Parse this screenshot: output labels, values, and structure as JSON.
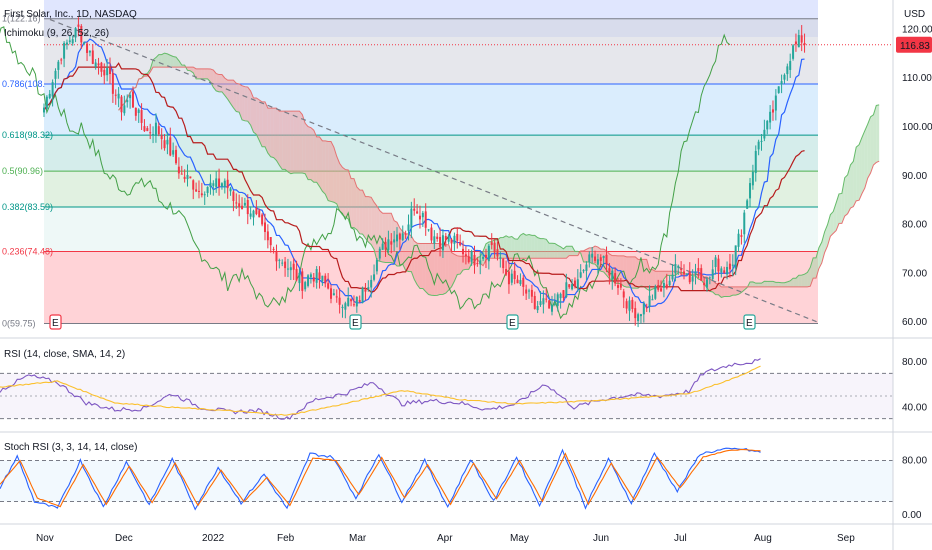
{
  "header": {
    "symbol": "First Solar, Inc., 1D, NASDAQ",
    "indicator": "Ichimoku (9, 26, 52, 26)",
    "currency": "USD"
  },
  "rsi_panel": {
    "label": "RSI (14, close, SMA, 14, 2)",
    "ticks": [
      "80.00",
      "40.00"
    ]
  },
  "stoch_panel": {
    "label": "Stoch RSI (3, 3, 14, 14, close)",
    "ticks": [
      "80.00",
      "0.00"
    ]
  },
  "price_badge": {
    "value": "116.83",
    "color": "#f23645"
  },
  "colors": {
    "up": "#26a69a",
    "down": "#f23645",
    "tenkan": "#2962ff",
    "kijun": "#b71c1c",
    "lagging": "#43a047",
    "cloud_bull": "#a5d6a7",
    "cloud_bear": "#ef9a9a",
    "rsi": "#7e57c2",
    "rsi_ma": "#fbc02d",
    "stoch_k": "#2962ff",
    "stoch_d": "#ff6d00"
  },
  "chart_data": [
    {
      "type": "candlestick",
      "title": "First Solar, Inc., 1D, NASDAQ",
      "y_axis": {
        "ticks": [
          "120.00",
          "110.00",
          "100.00",
          "90.00",
          "80.00",
          "70.00",
          "60.00"
        ],
        "range": [
          58,
          126
        ]
      },
      "x_axis": {
        "ticks": [
          "Nov",
          "Dec",
          "2022",
          "Feb",
          "Mar",
          "Apr",
          "May",
          "Jun",
          "Jul",
          "Aug",
          "Sep"
        ]
      },
      "fib_levels": [
        {
          "label": "1(122.16)",
          "value": 122.16,
          "fill": "#d1d4dc"
        },
        {
          "label": "0.786(108.",
          "value": 108.8,
          "fill": "#bbdefb"
        },
        {
          "label": "0.618(98.32)",
          "value": 98.32,
          "fill": "#b2dfdb"
        },
        {
          "label": "0.5(90.96)",
          "value": 90.96,
          "fill": "#c8e6c9"
        },
        {
          "label": "0.382(83.59)",
          "value": 83.59,
          "fill": "#e0f2f1"
        },
        {
          "label": "0.236(74.48)",
          "value": 74.48,
          "fill": "#ffcdd2"
        },
        {
          "label": "0(59.75)",
          "value": 59.75,
          "fill": ""
        }
      ],
      "earnings_markers": [
        {
          "label": "E",
          "month": "Oct",
          "kind": "negative"
        },
        {
          "label": "E",
          "month": "Mar",
          "kind": "positive"
        },
        {
          "label": "E",
          "month": "May",
          "kind": "positive"
        },
        {
          "label": "E",
          "month": "Aug",
          "kind": "positive"
        }
      ],
      "series": [
        {
          "name": "Close",
          "anchors": [
            [
              0,
              104
            ],
            [
              3,
              110
            ],
            [
              6,
              115
            ],
            [
              9,
              118
            ],
            [
              12,
              120
            ],
            [
              15,
              116
            ],
            [
              18,
              113
            ],
            [
              21,
              112
            ],
            [
              24,
              108
            ],
            [
              27,
              104
            ],
            [
              30,
              106
            ],
            [
              33,
              102
            ],
            [
              36,
              99
            ],
            [
              39,
              100
            ],
            [
              42,
              97
            ],
            [
              45,
              94
            ],
            [
              48,
              90
            ],
            [
              51,
              89
            ],
            [
              54,
              87
            ],
            [
              57,
              88
            ],
            [
              60,
              88
            ],
            [
              63,
              89
            ],
            [
              66,
              85
            ],
            [
              69,
              84
            ],
            [
              72,
              83
            ],
            [
              75,
              80
            ],
            [
              78,
              76
            ],
            [
              81,
              74
            ],
            [
              84,
              72
            ],
            [
              87,
              70
            ],
            [
              90,
              68
            ],
            [
              93,
              70
            ],
            [
              96,
              69
            ],
            [
              99,
              67
            ],
            [
              102,
              64
            ],
            [
              105,
              65
            ],
            [
              108,
              63
            ],
            [
              111,
              66
            ],
            [
              114,
              70
            ],
            [
              117,
              74
            ],
            [
              120,
              77
            ],
            [
              123,
              78
            ],
            [
              126,
              79
            ],
            [
              129,
              84
            ],
            [
              132,
              82
            ],
            [
              135,
              78
            ],
            [
              138,
              77
            ],
            [
              141,
              77
            ],
            [
              144,
              76
            ],
            [
              147,
              74
            ],
            [
              150,
              73
            ],
            [
              153,
              74
            ],
            [
              156,
              76
            ],
            [
              159,
              72
            ],
            [
              162,
              69
            ],
            [
              165,
              68
            ],
            [
              168,
              66
            ],
            [
              171,
              63
            ],
            [
              174,
              64
            ],
            [
              177,
              62
            ],
            [
              180,
              66
            ],
            [
              183,
              67
            ],
            [
              186,
              68
            ],
            [
              189,
              72
            ],
            [
              192,
              74
            ],
            [
              195,
              72
            ],
            [
              198,
              70
            ],
            [
              201,
              67
            ],
            [
              204,
              63
            ],
            [
              207,
              62
            ],
            [
              210,
              64
            ],
            [
              213,
              66
            ],
            [
              216,
              67
            ],
            [
              219,
              70
            ],
            [
              222,
              72
            ],
            [
              225,
              69
            ],
            [
              228,
              71
            ],
            [
              231,
              68
            ],
            [
              234,
              72
            ],
            [
              237,
              71
            ],
            [
              240,
              73
            ],
            [
              243,
              79
            ],
            [
              246,
              89
            ],
            [
              249,
              97
            ],
            [
              252,
              100
            ],
            [
              255,
              105
            ],
            [
              258,
              112
            ],
            [
              261,
              116
            ],
            [
              264,
              118
            ],
            [
              265,
              116.83
            ]
          ]
        }
      ],
      "current_price": 116.83
    },
    {
      "type": "line",
      "title": "RSI (14, close, SMA, 14, 2)",
      "y_axis": {
        "ticks": [
          "80.00",
          "40.00"
        ]
      },
      "series": [
        {
          "name": "RSI",
          "anchors": [
            [
              0,
              55
            ],
            [
              10,
              68
            ],
            [
              20,
              62
            ],
            [
              30,
              44
            ],
            [
              40,
              38
            ],
            [
              50,
              39
            ],
            [
              60,
              52
            ],
            [
              70,
              40
            ],
            [
              80,
              36
            ],
            [
              90,
              37
            ],
            [
              100,
              30
            ],
            [
              110,
              47
            ],
            [
              120,
              52
            ],
            [
              130,
              62
            ],
            [
              140,
              43
            ],
            [
              150,
              46
            ],
            [
              160,
              44
            ],
            [
              170,
              38
            ],
            [
              180,
              43
            ],
            [
              190,
              61
            ],
            [
              200,
              40
            ],
            [
              210,
              47
            ],
            [
              220,
              51
            ],
            [
              230,
              50
            ],
            [
              240,
              54
            ],
            [
              245,
              70
            ],
            [
              255,
              78
            ],
            [
              265,
              81
            ]
          ]
        },
        {
          "name": "SMA",
          "anchors": [
            [
              0,
              58
            ],
            [
              20,
              63
            ],
            [
              40,
              44
            ],
            [
              60,
              40
            ],
            [
              80,
              37
            ],
            [
              100,
              33
            ],
            [
              120,
              43
            ],
            [
              140,
              55
            ],
            [
              160,
              47
            ],
            [
              180,
              43
            ],
            [
              200,
              45
            ],
            [
              220,
              48
            ],
            [
              240,
              52
            ],
            [
              255,
              65
            ],
            [
              265,
              76
            ]
          ]
        }
      ]
    },
    {
      "type": "line",
      "title": "Stoch RSI (3, 3, 14, 14, close)",
      "y_axis": {
        "ticks": [
          "80.00",
          "0.00"
        ]
      },
      "series": [
        {
          "name": "K",
          "anchors": [
            [
              0,
              40
            ],
            [
              6,
              86
            ],
            [
              12,
              20
            ],
            [
              20,
              10
            ],
            [
              28,
              80
            ],
            [
              36,
              12
            ],
            [
              44,
              78
            ],
            [
              52,
              15
            ],
            [
              60,
              82
            ],
            [
              68,
              10
            ],
            [
              76,
              70
            ],
            [
              84,
              18
            ],
            [
              92,
              60
            ],
            [
              100,
              10
            ],
            [
              108,
              90
            ],
            [
              116,
              85
            ],
            [
              124,
              25
            ],
            [
              132,
              90
            ],
            [
              140,
              20
            ],
            [
              148,
              80
            ],
            [
              156,
              12
            ],
            [
              164,
              82
            ],
            [
              172,
              20
            ],
            [
              180,
              85
            ],
            [
              188,
              15
            ],
            [
              196,
              95
            ],
            [
              204,
              12
            ],
            [
              212,
              82
            ],
            [
              220,
              18
            ],
            [
              228,
              90
            ],
            [
              236,
              35
            ],
            [
              244,
              90
            ],
            [
              252,
              96
            ],
            [
              258,
              97
            ],
            [
              265,
              92
            ]
          ]
        },
        {
          "name": "D",
          "anchors": [
            [
              0,
              45
            ],
            [
              7,
              80
            ],
            [
              13,
              25
            ],
            [
              21,
              13
            ],
            [
              29,
              74
            ],
            [
              37,
              16
            ],
            [
              45,
              72
            ],
            [
              53,
              18
            ],
            [
              61,
              76
            ],
            [
              69,
              14
            ],
            [
              77,
              66
            ],
            [
              85,
              20
            ],
            [
              93,
              55
            ],
            [
              101,
              14
            ],
            [
              109,
              84
            ],
            [
              117,
              80
            ],
            [
              125,
              30
            ],
            [
              133,
              84
            ],
            [
              141,
              25
            ],
            [
              149,
              74
            ],
            [
              157,
              16
            ],
            [
              165,
              76
            ],
            [
              173,
              24
            ],
            [
              181,
              80
            ],
            [
              189,
              20
            ],
            [
              197,
              90
            ],
            [
              205,
              16
            ],
            [
              213,
              76
            ],
            [
              221,
              22
            ],
            [
              229,
              85
            ],
            [
              237,
              40
            ],
            [
              245,
              85
            ],
            [
              253,
              94
            ],
            [
              259,
              96
            ],
            [
              265,
              94
            ]
          ]
        }
      ]
    }
  ]
}
